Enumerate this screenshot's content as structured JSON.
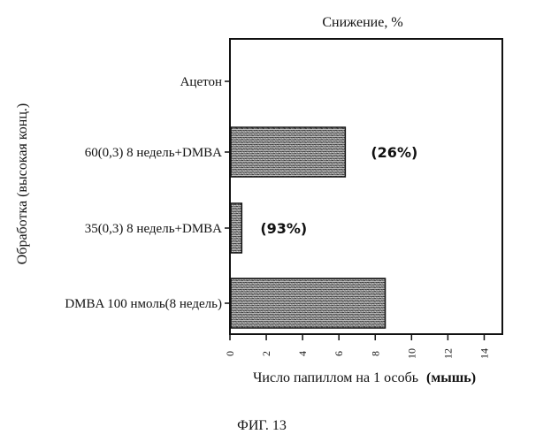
{
  "chart_data": {
    "type": "bar",
    "orientation": "horizontal",
    "title": "Снижение, %",
    "xlabel": "Число папиллом на 1 особь",
    "xlabel_suffix": "(мышь)",
    "ylabel": "Обработка (высокая конц.)",
    "categories": [
      "Ацетон",
      "60(0,3) 8 недель+DMBA",
      "35(0,3) 8 недель+DMBA",
      "DMBA 100 нмоль(8 недель)"
    ],
    "values": [
      0,
      6.3,
      0.6,
      8.5
    ],
    "bar_labels": [
      "",
      "(26%)",
      "(93%)",
      ""
    ],
    "xlim": [
      0,
      15
    ],
    "xticks": [
      0,
      2,
      4,
      6,
      8,
      10,
      12,
      14
    ],
    "grid": false,
    "legend": "none"
  },
  "figure_caption": "ФИГ. 13",
  "colors": {
    "bar_fill": "#555555",
    "axis": "#111111"
  }
}
